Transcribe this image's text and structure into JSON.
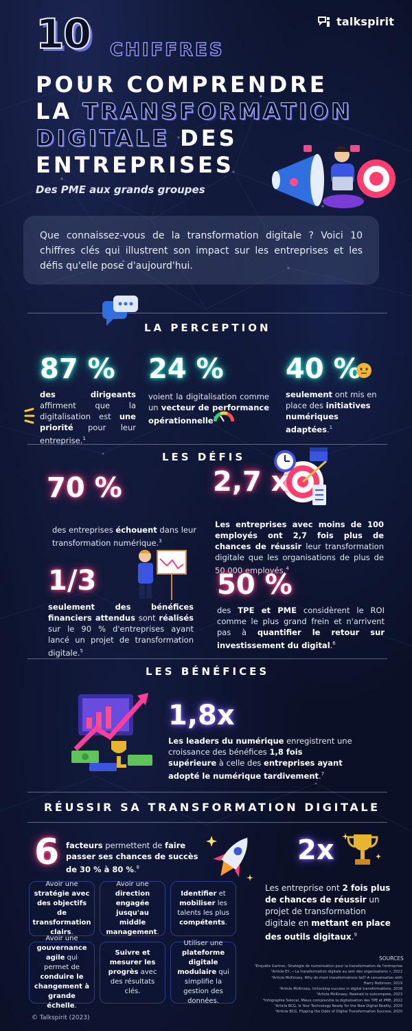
{
  "brand": {
    "logo_text": "talkspirit"
  },
  "header": {
    "number": "10",
    "chiffres": "CHIFFRES",
    "line1": "POUR COMPRENDRE",
    "line2_a": "LA",
    "line2_b": "TRANSFORMATION",
    "line3_a": "DIGITALE",
    "line3_b": "DES",
    "line4": "ENTREPRISES",
    "subtitle": "Des PME aux grands groupes"
  },
  "intro": "Que connaissez-vous de la transformation digitale ? Voici 10 chiffres clés qui illustrent son impact sur les entreprises et les défis qu'elle pose d'aujourd'hui.",
  "perception": {
    "title": "LA PERCEPTION",
    "stats": [
      {
        "value": "87 %",
        "b1": "des dirigeants",
        "t1": " affirment que la digitalisation est ",
        "b2": "une priorité",
        "t2": " pour leur entreprise.",
        "ref": "1"
      },
      {
        "value": "24 %",
        "t1": "voient la digitalisation comme un ",
        "b1": "vecteur de performance opérationnelle",
        "ref": "2"
      },
      {
        "value": "40 %",
        "b1": "seulement",
        "t1": " ont mis en place des ",
        "b2": "initiatives numériques adaptées",
        "ref": "1"
      }
    ]
  },
  "defis": {
    "title": "LES DÉFIS",
    "s70": {
      "value": "70 %",
      "t1": "des entreprises ",
      "b1": "échouent",
      "t2": " dans leur transformation numérique.",
      "ref": "3"
    },
    "s27": {
      "value": "2,7 x",
      "b1": "Les entreprises avec moins de 100 employés ont 2,7 fois plus de chances de réussir",
      "t1": " leur transformation digitale que les organisations de plus de 50 000 employés.",
      "ref": "4"
    },
    "s13": {
      "value": "1/3",
      "b1": "seulement des bénéfices financiers attendus",
      "t1": " sont ",
      "b2": "réalisés",
      "t2": " sur le 90 % d'entreprises ayant lancé un projet de transformation digitale.",
      "ref": "5"
    },
    "s50": {
      "value": "50 %",
      "t1": "des ",
      "b1": "TPE et PME",
      "t2": " considèrent le ROI comme le plus grand frein et n'arrivent pas à ",
      "b2": "quantifier le retour sur investissement du digital",
      "ref": "6"
    }
  },
  "benefices": {
    "title": "LES BÉNÉFICES",
    "value": "1,8x",
    "b1": "Les leaders du numérique",
    "t1": " enregistrent une croissance des bénéfices ",
    "b2": "1,8 fois supérieure",
    "t2": " à celle des ",
    "b3": "entreprises ayant adopté le numérique tardivement",
    "ref": "7"
  },
  "reussir": {
    "title": "RÉUSSIR SA TRANSFORMATION DIGITALE",
    "six": {
      "value": "6",
      "b1": "facteurs",
      "t1": " permettent de ",
      "b2": "faire passer ses chances de succès de 30 % à 80 %",
      "ref": "8"
    },
    "boxes": [
      {
        "t1": "Avoir une ",
        "b1": "stratégie avec des objectifs de transformation clairs"
      },
      {
        "t1": "Avoir une ",
        "b1": "direction engagée jusqu'au middle management"
      },
      {
        "b1": "Identifier",
        "t1": " et ",
        "b2": "mobiliser",
        "t2": " les talents les plus ",
        "b3": "compétents"
      },
      {
        "t1": "Avoir une ",
        "b1": "gouvernance agile",
        "t2": " qui permet de ",
        "b2": "conduire le changement à grande échelle"
      },
      {
        "b1": "Suivre et mesurer les progrès",
        "t1": " avec des résultats clés."
      },
      {
        "t1": "Utiliser une ",
        "b1": "plateforme digitale modulaire",
        "t2": " qui simplifie la gestion des données."
      }
    ],
    "two": {
      "value": "2x",
      "t1": "Les entreprise ont ",
      "b1": "2 fois plus de chances de réussir",
      "t2": " un projet de transformation digitale en ",
      "b2": "mettant en place des outils digitaux",
      "ref": "9"
    }
  },
  "sources": {
    "title": "SOURCES",
    "items": [
      "¹Enquête Gartner, Stratégie de numérisation pour la transformation de l'entreprise",
      "²Article EY, « La transformation digitale au sein des organisations », 2022",
      "³Article McKinsey, Why do most transformations fail? A conversation with",
      "Harry Robinson, 2019",
      "⁴Article McKinsey, Unlocking success in digital transformations, 2018",
      "⁵Article McKinsey, Rewired to outcompete, 2023",
      "⁶Infographie Solocal, Mieux comprendre la digitalisation des TPE et PME, 2022",
      "⁷Article BCG, Is Your Technology Ready for the New Digital Reality, 2020",
      "⁸Article BCG, Flipping the Odds of Digital Transformation Success, 2020"
    ]
  },
  "copyright": "© Talkspirit (2023)"
}
